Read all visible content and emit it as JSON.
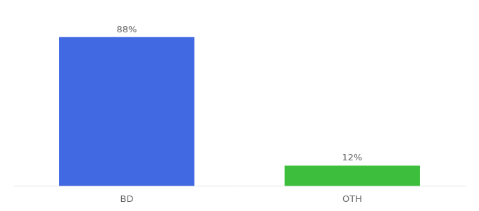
{
  "chart_data": {
    "type": "bar",
    "categories": [
      "BD",
      "OTH"
    ],
    "values": [
      88,
      12
    ],
    "value_labels": [
      "88%",
      "12%"
    ],
    "colors": [
      "#4169e1",
      "#3dbf3d"
    ],
    "ylim": [
      0,
      100
    ],
    "data_labels": true,
    "grid": false,
    "tick_labels": "x"
  }
}
